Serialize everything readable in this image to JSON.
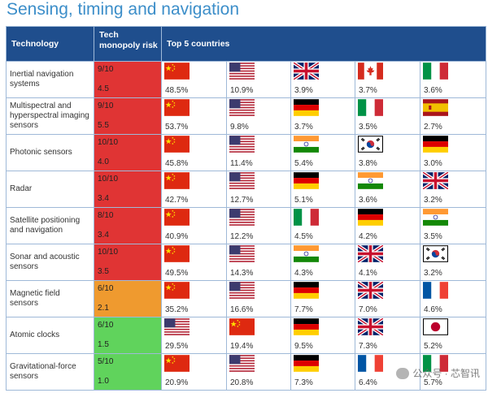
{
  "title": "Sensing, timing and navigation",
  "headers": {
    "technology": "Technology",
    "risk_line1": "Tech",
    "risk_line2": "monopoly risk",
    "countries": "Top 5 countries"
  },
  "rows": [
    {
      "tech": "Inertial navigation systems",
      "score": "9/10",
      "index": "4.5",
      "level": "red",
      "countries": [
        {
          "flag": "china",
          "pct": "48.5%"
        },
        {
          "flag": "usa",
          "pct": "10.9%"
        },
        {
          "flag": "uk",
          "pct": "3.9%"
        },
        {
          "flag": "canada",
          "pct": "3.7%"
        },
        {
          "flag": "italy",
          "pct": "3.6%"
        }
      ]
    },
    {
      "tech": "Multispectral and hyperspectral imaging sensors",
      "score": "9/10",
      "index": "5.5",
      "level": "red",
      "countries": [
        {
          "flag": "china",
          "pct": "53.7%"
        },
        {
          "flag": "usa",
          "pct": "9.8%"
        },
        {
          "flag": "germany",
          "pct": "3.7%"
        },
        {
          "flag": "italy",
          "pct": "3.5%"
        },
        {
          "flag": "spain",
          "pct": "2.7%"
        }
      ]
    },
    {
      "tech": "Photonic sensors",
      "score": "10/10",
      "index": "4.0",
      "level": "red",
      "countries": [
        {
          "flag": "china",
          "pct": "45.8%"
        },
        {
          "flag": "usa",
          "pct": "11.4%"
        },
        {
          "flag": "india",
          "pct": "5.4%"
        },
        {
          "flag": "korea",
          "pct": "3.8%"
        },
        {
          "flag": "germany",
          "pct": "3.0%"
        }
      ]
    },
    {
      "tech": "Radar",
      "score": "10/10",
      "index": "3.4",
      "level": "red",
      "countries": [
        {
          "flag": "china",
          "pct": "42.7%"
        },
        {
          "flag": "usa",
          "pct": "12.7%"
        },
        {
          "flag": "germany",
          "pct": "5.1%"
        },
        {
          "flag": "india",
          "pct": "3.6%"
        },
        {
          "flag": "uk",
          "pct": "3.2%"
        }
      ]
    },
    {
      "tech": "Satellite positioning and navigation",
      "score": "8/10",
      "index": "3.4",
      "level": "red",
      "countries": [
        {
          "flag": "china",
          "pct": "40.9%"
        },
        {
          "flag": "usa",
          "pct": "12.2%"
        },
        {
          "flag": "italy",
          "pct": "4.5%"
        },
        {
          "flag": "germany",
          "pct": "4.2%"
        },
        {
          "flag": "india",
          "pct": "3.5%"
        }
      ]
    },
    {
      "tech": "Sonar and acoustic sensors",
      "score": "10/10",
      "index": "3.5",
      "level": "red",
      "countries": [
        {
          "flag": "china",
          "pct": "49.5%"
        },
        {
          "flag": "usa",
          "pct": "14.3%"
        },
        {
          "flag": "india",
          "pct": "4.3%"
        },
        {
          "flag": "uk",
          "pct": "4.1%"
        },
        {
          "flag": "korea",
          "pct": "3.2%"
        }
      ]
    },
    {
      "tech": "Magnetic field sensors",
      "score": "6/10",
      "index": "2.1",
      "level": "orange",
      "countries": [
        {
          "flag": "china",
          "pct": "35.2%"
        },
        {
          "flag": "usa",
          "pct": "16.6%"
        },
        {
          "flag": "germany",
          "pct": "7.7%"
        },
        {
          "flag": "uk",
          "pct": "7.0%"
        },
        {
          "flag": "france",
          "pct": "4.6%"
        }
      ]
    },
    {
      "tech": "Atomic clocks",
      "score": "6/10",
      "index": "1.5",
      "level": "green",
      "countries": [
        {
          "flag": "usa",
          "pct": "29.5%"
        },
        {
          "flag": "china",
          "pct": "19.4%"
        },
        {
          "flag": "germany",
          "pct": "9.5%"
        },
        {
          "flag": "uk",
          "pct": "7.3%"
        },
        {
          "flag": "japan",
          "pct": "5.2%"
        }
      ]
    },
    {
      "tech": "Gravitational-force sensors",
      "score": "5/10",
      "index": "1.0",
      "level": "green",
      "countries": [
        {
          "flag": "china",
          "pct": "20.9%"
        },
        {
          "flag": "usa",
          "pct": "20.8%"
        },
        {
          "flag": "germany",
          "pct": "7.3%"
        },
        {
          "flag": "france",
          "pct": "6.4%"
        },
        {
          "flag": "italy",
          "pct": "5.7%"
        }
      ]
    }
  ],
  "watermark": "公众号 · 芯智讯",
  "colors": {
    "header_bg": "#1f4e8d",
    "title": "#3c8ec9",
    "high_risk": "#e03434",
    "medium_risk": "#ef9a2f",
    "low_risk": "#60d35c"
  }
}
